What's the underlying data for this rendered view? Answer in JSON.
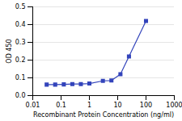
{
  "chart_data": {
    "type": "line",
    "log": "x",
    "x": [
      0.031,
      0.062,
      0.125,
      0.25,
      0.5,
      1.0,
      3.0,
      6.0,
      12.5,
      25.0,
      100.0
    ],
    "values": [
      0.062,
      0.062,
      0.063,
      0.065,
      0.065,
      0.068,
      0.083,
      0.085,
      0.12,
      0.22,
      0.42
    ],
    "color": "#3344bb",
    "marker": "square",
    "xlabel": "Recombinant Protein Concentration (ng/ml)",
    "ylabel": "OD 450",
    "xlim": [
      0.01,
      1000
    ],
    "xticks": [
      0.01,
      0.1,
      1,
      10,
      100,
      1000
    ],
    "ylim": [
      0,
      0.5
    ],
    "yticks": [
      {
        "value": 0,
        "label": "0.0"
      },
      0.1,
      0.2,
      0.3,
      0.4,
      0.5
    ],
    "grid": "y"
  }
}
